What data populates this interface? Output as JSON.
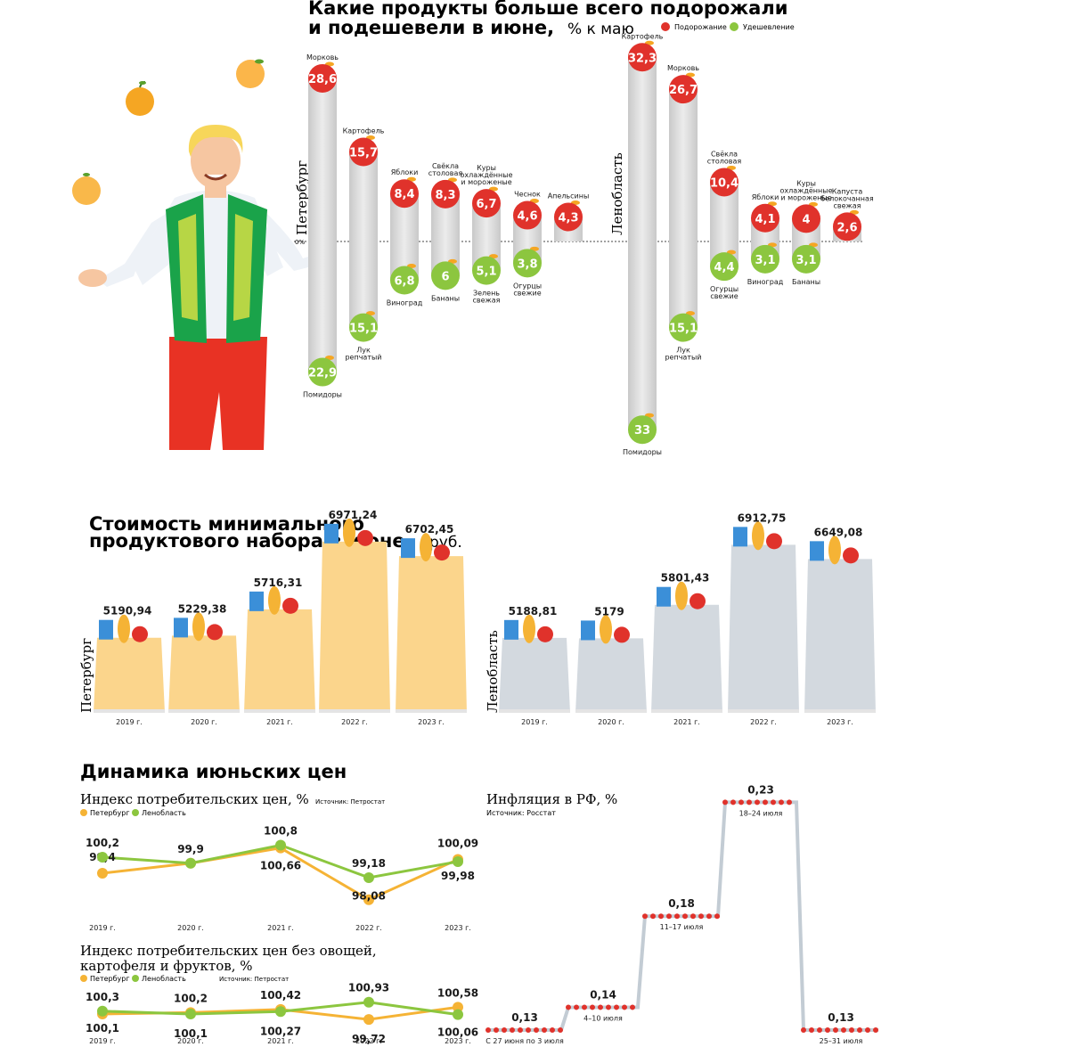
{
  "colors": {
    "rise": "#e0322b",
    "fall": "#8cc63f",
    "spb": "#f5b335",
    "lo": "#8cc63f",
    "bag_spb": "#fbd58c",
    "bag_lo": "#d3d9df",
    "bar": "#d6d6d6",
    "weekly_line": "#c3ccd4",
    "weekly_dot": "#e0322b"
  },
  "section1": {
    "title_line1": "Какие продукты больше всего подорожали",
    "title_line2": "и подешевели в июне,",
    "title_unit": "% к маю",
    "legend_rise": "Подорожание",
    "legend_fall": "Удешевление",
    "zero_label": "0%"
  },
  "chart_data": [
    {
      "type": "bar",
      "id": "spb_price_change",
      "region": "Петербург",
      "unit": "% к маю",
      "categories": [
        "Морковь",
        "Картофель",
        "Яблоки",
        "Свёкла столовая",
        "Куры охлаждённые и мороженые",
        "Чеснок",
        "Апельсины",
        "Помидоры",
        "Лук репчатый",
        "Виноград",
        "Бананы",
        "Зелень свежая",
        "Огурцы свежие"
      ],
      "values": [
        28.6,
        15.7,
        8.4,
        8.3,
        6.7,
        4.6,
        4.3,
        -22.9,
        -15.1,
        -6.8,
        -6.0,
        -5.1,
        -3.8
      ],
      "labels": [
        "28,6",
        "15,7",
        "8,4",
        "8,3",
        "6,7",
        "4,6",
        "4,3",
        "22,9",
        "15,1",
        "6,8",
        "6",
        "5,1",
        "3,8"
      ]
    },
    {
      "type": "bar",
      "id": "lo_price_change",
      "region": "Ленобласть",
      "unit": "% к маю",
      "categories": [
        "Картофель",
        "Морковь",
        "Свёкла столовая",
        "Яблоки",
        "Куры охлаждённые и мороженые",
        "Капуста белокочанная свежая",
        "Помидоры",
        "Лук репчатый",
        "Огурцы свежие",
        "Виноград",
        "Бананы"
      ],
      "values": [
        32.3,
        26.7,
        10.4,
        4.1,
        4.0,
        2.6,
        -33.0,
        -15.1,
        -4.4,
        -3.1,
        -3.1
      ],
      "labels": [
        "32,3",
        "26,7",
        "10,4",
        "4,1",
        "4",
        "2,6",
        "33",
        "15,1",
        "4,4",
        "3,1",
        "3,1"
      ]
    },
    {
      "type": "bar",
      "id": "basket_cost",
      "title": "Стоимость минимального продуктового набора в июне, руб.",
      "categories": [
        "2019 г.",
        "2020 г.",
        "2021 г.",
        "2022 г.",
        "2023 г."
      ],
      "series": [
        {
          "name": "Петербург",
          "values": [
            5190.94,
            5229.38,
            5716.31,
            6971.24,
            6702.45
          ],
          "labels": [
            "5190,94",
            "5229,38",
            "5716,31",
            "6971,24",
            "6702,45"
          ]
        },
        {
          "name": "Ленобласть",
          "values": [
            5188.81,
            5179,
            5801.43,
            6912.75,
            6649.08
          ],
          "labels": [
            "5188,81",
            "5179",
            "5801,43",
            "6912,75",
            "6649,08"
          ]
        }
      ]
    },
    {
      "type": "line",
      "id": "cpi",
      "title": "Индекс потребительских цен, %",
      "source": "Источник: Петростат",
      "x": [
        "2019 г.",
        "2020 г.",
        "2021 г.",
        "2022 г.",
        "2023 г."
      ],
      "series": [
        {
          "name": "Петербург",
          "values": [
            99.4,
            99.9,
            100.66,
            98.08,
            100.09
          ],
          "labels": [
            "99,4",
            "",
            "100,66",
            "98,08",
            "100,09"
          ]
        },
        {
          "name": "Ленобласть",
          "values": [
            100.2,
            99.9,
            100.8,
            99.18,
            99.98
          ],
          "labels": [
            "100,2",
            "99,9",
            "100,8",
            "99,18",
            "99,98"
          ]
        }
      ]
    },
    {
      "type": "line",
      "id": "cpi_core",
      "title": "Индекс потребительских цен без овощей, картофеля и фруктов, %",
      "source": "Источник: Петростат",
      "x": [
        "2019 г.",
        "2020 г.",
        "2021 г.",
        "2022 г.",
        "2023 г."
      ],
      "series": [
        {
          "name": "Петербург",
          "values": [
            100.1,
            100.2,
            100.42,
            99.72,
            100.58
          ],
          "labels": [
            "100,1",
            "100,2",
            "100,42",
            "99,72",
            "100,58"
          ]
        },
        {
          "name": "Ленобласть",
          "values": [
            100.3,
            100.1,
            100.27,
            100.93,
            100.06
          ],
          "labels": [
            "100,3",
            "100,1",
            "100,27",
            "100,93",
            "100,06"
          ]
        }
      ]
    },
    {
      "type": "line",
      "id": "weekly_inflation",
      "title": "Инфляция в РФ, %",
      "source": "Источник: Росстат",
      "x": [
        "С 27 июня по 3 июля",
        "4–10 июля",
        "11–17 июля",
        "18–24 июля",
        "25–31 июля"
      ],
      "values": [
        0.13,
        0.14,
        0.18,
        0.23,
        0.13
      ],
      "labels": [
        "0,13",
        "0,14",
        "0,18",
        "0,23",
        "0,13"
      ]
    }
  ],
  "section2": {
    "title_line1": "Стоимость минимального",
    "title_line2": "продуктового набора в июне,",
    "title_unit": "руб.",
    "region_spb": "Петербург",
    "region_lo": "Ленобласть"
  },
  "section3": {
    "title": "Динамика июньских цен",
    "cpi_title": "Индекс потребительских цен, %",
    "cpi_source": "Источник: Петростат",
    "cpi2_title_line1": "Индекс потребительских цен без овощей,",
    "cpi2_title_line2": "картофеля и фруктов, %",
    "cpi2_source": "Источник: Петростат",
    "legend_spb": "Петербург",
    "legend_lo": "Ленобласть",
    "inflation_title": "Инфляция в РФ, %",
    "inflation_source": "Источник: Росстат"
  }
}
